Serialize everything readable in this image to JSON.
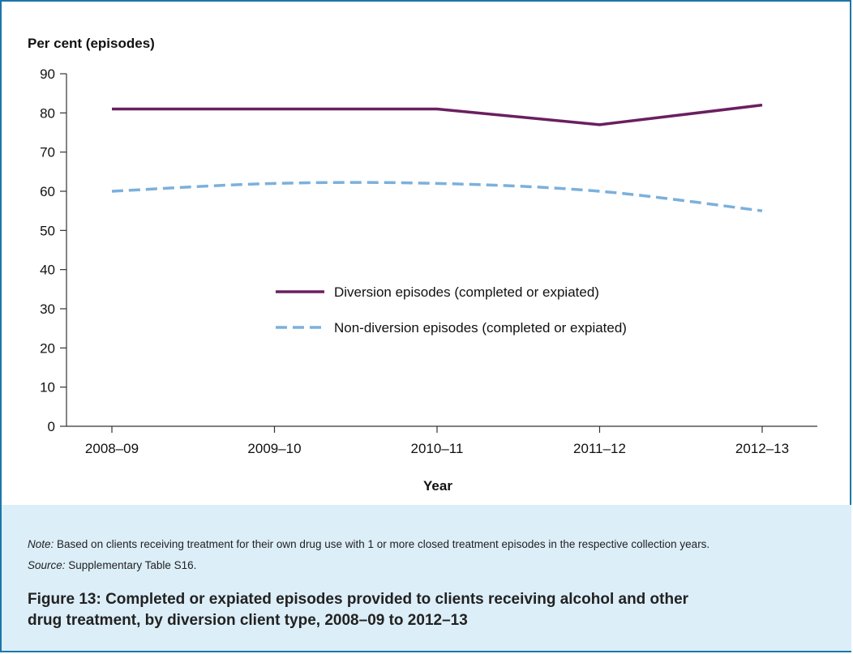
{
  "chart_data": {
    "type": "line",
    "ylabel": "Per cent (episodes)",
    "xlabel": "Year",
    "categories": [
      "2008–09",
      "2009–10",
      "2010–11",
      "2011–12",
      "2012–13"
    ],
    "ylim": [
      0,
      90
    ],
    "yticks": [
      0,
      10,
      20,
      30,
      40,
      50,
      60,
      70,
      80,
      90
    ],
    "grid": false,
    "legend_position": "center",
    "series": [
      {
        "name": "Diversion episodes (completed or expiated)",
        "values": [
          81,
          81,
          81,
          77,
          82
        ],
        "color": "#6a1f5f",
        "style": "solid"
      },
      {
        "name": "Non-diversion episodes (completed or expiated)",
        "values": [
          60,
          62,
          62,
          60,
          55
        ],
        "color": "#7bb0dc",
        "style": "dashed"
      }
    ]
  },
  "note": {
    "label": "Note:",
    "text": " Based on clients receiving treatment for their own drug use with 1 or more closed treatment episodes in the respective collection years."
  },
  "source": {
    "label": "Source:",
    "text": " Supplementary Table S16."
  },
  "caption": "Figure 13: Completed or expiated episodes provided to clients receiving alcohol and other drug treatment, by diversion client type, 2008–09 to 2012–13"
}
